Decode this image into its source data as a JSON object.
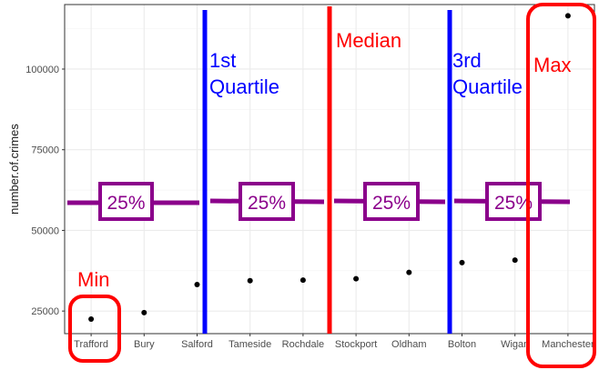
{
  "chart_data": {
    "type": "scatter",
    "ylabel": "number.of.crimes",
    "categories": [
      "Trafford",
      "Bury",
      "Salford",
      "Tameside",
      "Rochdale",
      "Stockport",
      "Oldham",
      "Bolton",
      "Wigan",
      "Manchester"
    ],
    "values": [
      22500,
      24500,
      33200,
      34400,
      34600,
      35000,
      37000,
      40000,
      40800,
      116500
    ],
    "ylim": [
      18000,
      120000
    ],
    "yticks": [
      25000,
      50000,
      75000,
      100000
    ],
    "ytick_labels": [
      "25000",
      "50000",
      "75000",
      "100000"
    ],
    "grid": true,
    "annotations": {
      "min": {
        "text": "Min",
        "color": "#ff0000"
      },
      "max": {
        "text": "Max",
        "color": "#ff0000"
      },
      "median": {
        "text": "Median",
        "color": "#ff0000"
      },
      "q1": {
        "text": "1st Quartile",
        "line1": "1st",
        "line2": "Quartile",
        "color": "#0000ff"
      },
      "q3": {
        "text": "3rd Quartile",
        "line1": "3rd",
        "line2": "Quartile",
        "color": "#0000ff"
      },
      "segment_label": "25%",
      "segment_color": "#8b008b",
      "segment_level": 60000
    }
  }
}
